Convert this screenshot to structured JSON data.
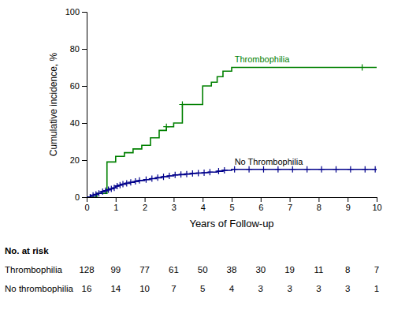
{
  "chart_data": {
    "type": "step",
    "xlabel": "Years of Follow-up",
    "ylabel": "Cumulative incidence, %",
    "xlim": [
      0,
      10
    ],
    "ylim": [
      0,
      100
    ],
    "xticks": [
      0,
      1,
      2,
      3,
      4,
      5,
      6,
      7,
      8,
      9,
      10
    ],
    "yticks": [
      0,
      20,
      40,
      60,
      80,
      100
    ],
    "series": [
      {
        "color": "#008000",
        "marker": "plus",
        "x": [
          0,
          0.3,
          0.35,
          0.7,
          1.0,
          1.3,
          1.6,
          1.9,
          2.2,
          2.5,
          2.75,
          3.0,
          3.3,
          4.0,
          4.3,
          4.5,
          4.7,
          5.0,
          10.0
        ],
        "values": [
          0,
          0,
          2,
          19,
          22,
          24,
          26,
          28,
          32,
          36,
          38,
          40,
          50,
          60,
          62,
          65,
          68,
          70,
          70
        ],
        "censor_x": [
          2.75,
          3.3,
          9.5
        ],
        "censor_values": [
          38,
          50,
          70
        ]
      },
      {
        "color": "#00008B",
        "marker": "plus",
        "x": [
          0,
          0.15,
          0.25,
          0.35,
          0.5,
          0.6,
          0.7,
          0.8,
          0.9,
          1.0,
          1.1,
          1.2,
          1.35,
          1.5,
          1.65,
          1.8,
          2.0,
          2.2,
          2.4,
          2.6,
          2.8,
          3.0,
          3.2,
          3.4,
          3.6,
          3.8,
          4.0,
          4.2,
          4.5,
          4.7,
          5.0,
          5.5,
          6.0,
          7.0,
          8.0,
          9.0,
          10.0
        ],
        "values": [
          0,
          1,
          1.5,
          2,
          3,
          3.5,
          4,
          4.5,
          5,
          6,
          6.5,
          7,
          7.5,
          8,
          8.5,
          9,
          9.5,
          10,
          10.5,
          11,
          11.5,
          12,
          12.2,
          12.5,
          12.8,
          13,
          13.2,
          13.5,
          14,
          14.5,
          15,
          15,
          15,
          15,
          15,
          15,
          15
        ],
        "censor_x": [
          0.12,
          0.22,
          0.32,
          0.42,
          0.55,
          0.65,
          0.75,
          0.85,
          0.95,
          1.05,
          1.15,
          1.25,
          1.38,
          1.52,
          1.68,
          1.82,
          2.05,
          2.25,
          2.45,
          2.65,
          2.85,
          3.05,
          3.25,
          3.45,
          3.65,
          3.85,
          4.05,
          4.25,
          4.55,
          4.75,
          5.1,
          5.6,
          6.1,
          6.6,
          7.1,
          7.6,
          8.1,
          8.6,
          9.1,
          9.6,
          9.95
        ],
        "censor_values": [
          0,
          1,
          1.5,
          2,
          3,
          3.5,
          4,
          4.5,
          5,
          6,
          6.5,
          7,
          7.5,
          8,
          8.5,
          9,
          9.5,
          10,
          10.5,
          11,
          11.5,
          12,
          12.2,
          12.5,
          12.8,
          13,
          13.2,
          13.5,
          14,
          14.5,
          15,
          15,
          15,
          15,
          15,
          15,
          15,
          15,
          15,
          15,
          15
        ]
      }
    ],
    "annotations": [
      {
        "text": "Thrombophilia",
        "x": 5.1,
        "y": 72,
        "color": "#008000"
      },
      {
        "text": "No Thrombophilia",
        "x": 5.1,
        "y": 16.5,
        "color": "#000000"
      }
    ],
    "at_risk": {
      "title": "No. at risk",
      "x": [
        0,
        1,
        2,
        3,
        4,
        5,
        6,
        7,
        8,
        9,
        10
      ],
      "rows": [
        {
          "label": "Thrombophilia",
          "values": [
            128,
            99,
            77,
            61,
            50,
            38,
            30,
            19,
            11,
            8,
            7
          ]
        },
        {
          "label": "No thrombophilia",
          "values": [
            16,
            14,
            10,
            7,
            5,
            4,
            3,
            3,
            3,
            3,
            1
          ]
        }
      ]
    }
  }
}
